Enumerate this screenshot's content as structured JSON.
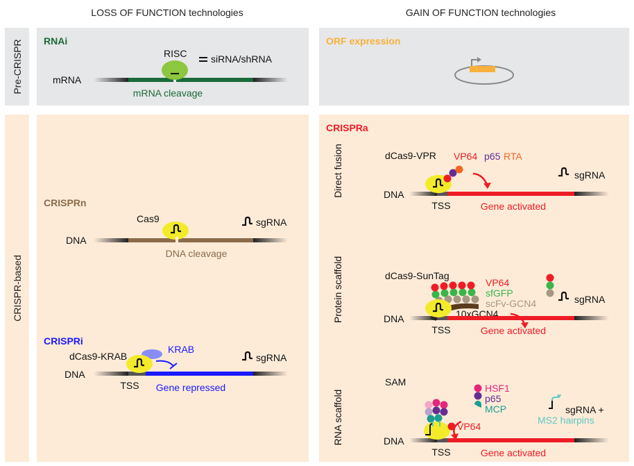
{
  "headers": {
    "loss": "LOSS OF FUNCTION technologies",
    "gain": "GAIN OF FUNCTION technologies"
  },
  "rows": {
    "pre": "Pre-CRISPR",
    "crispr": "CRISPR-based"
  },
  "rnai": {
    "title": "RNAi",
    "risc": "RISC",
    "sirna": "siRNA/shRNA",
    "mrna": "mRNA",
    "cleavage": "mRNA cleavage"
  },
  "orf": {
    "title": "ORF expression"
  },
  "crisprn": {
    "title": "CRISPRn",
    "cas9": "Cas9",
    "sgrna": "sgRNA",
    "dna": "DNA",
    "cleavage": "DNA cleavage"
  },
  "crispri": {
    "title": "CRISPRi",
    "protein": "dCas9-KRAB",
    "krab": "KRAB",
    "sgrna": "sgRNA",
    "dna": "DNA",
    "tss": "TSS",
    "repressed": "Gene repressed"
  },
  "crispra": {
    "title": "CRISPRa",
    "direct": {
      "side": "Direct fusion",
      "protein": "dCas9-VPR",
      "vp64": "VP64",
      "p65": "p65",
      "rta": "RTA",
      "sgrna": "sgRNA",
      "dna": "DNA",
      "tss": "TSS",
      "activated": "Gene activated"
    },
    "protein": {
      "side": "Protein scaffold",
      "protein": "dCas9-SunTag",
      "vp64": "VP64",
      "sfgfp": "sfGFP",
      "scfv": "scFv-GCN4",
      "gcn4": "10xGCN4",
      "sgrna": "sgRNA",
      "dna": "DNA",
      "tss": "TSS",
      "activated": "Gene activated"
    },
    "rna": {
      "side": "RNA scaffold",
      "protein": "SAM",
      "hsf1": "HSF1",
      "p65": "p65",
      "mcp": "MCP",
      "vp64": "VP64",
      "sgrna": "sgRNA +",
      "ms2": "MS2 hairpins",
      "dna": "DNA",
      "tss": "TSS",
      "activated": "Gene activated"
    }
  },
  "colors": {
    "panel_gray": "#e6e7e8",
    "panel_peach": "#fdebd8",
    "rnai_green": "#1a6b3a",
    "orf_orange": "#f7b13c",
    "crisprn_brown": "#8b6b4a",
    "crispri_blue": "#1a1aff",
    "crispra_red": "#ee1c25",
    "cas_yellow": "#f3eb2a",
    "risc_green": "#8dc63f",
    "p65_purple": "#662d91",
    "rta_orange": "#f26522",
    "sfgfp_green": "#39b54a",
    "scfv_tan": "#a69883",
    "hsf1_pink": "#e2267a",
    "mcp_teal": "#1b9e8f",
    "ms2_teal": "#5fc7c1"
  }
}
